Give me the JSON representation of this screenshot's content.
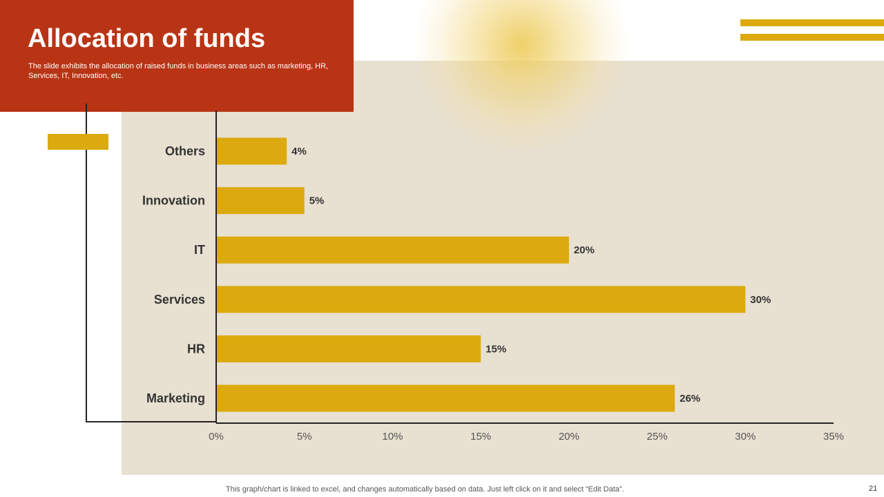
{
  "slide": {
    "title": "Allocation of funds",
    "subtitle": "The slide exhibits the allocation of raised funds in business areas such as marketing, HR, Services, IT, Innovation, etc.",
    "footer_note": "This graph/chart is linked to excel,  and changes automatically based on data. Just left click on it and select “Edit Data”.",
    "page_number": "21"
  },
  "colors": {
    "title_bg": "#b83415",
    "bar": "#dcaa0e",
    "panel": "#e8e0d0",
    "axis": "#222222",
    "label": "#333333"
  },
  "chart_data": {
    "type": "bar",
    "orientation": "horizontal",
    "title": "",
    "xlabel": "",
    "ylabel": "",
    "categories": [
      "Others",
      "Innovation",
      "IT",
      "Services",
      "HR",
      "Marketing"
    ],
    "values": [
      4,
      5,
      20,
      30,
      15,
      26
    ],
    "data_labels": [
      "4%",
      "5%",
      "20%",
      "30%",
      "15%",
      "26%"
    ],
    "xlim": [
      0,
      35
    ],
    "x_ticks": [
      0,
      5,
      10,
      15,
      20,
      25,
      30,
      35
    ],
    "x_tick_labels": [
      "0%",
      "5%",
      "10%",
      "15%",
      "20%",
      "25%",
      "30%",
      "35%"
    ],
    "grid": false,
    "legend": "none"
  }
}
